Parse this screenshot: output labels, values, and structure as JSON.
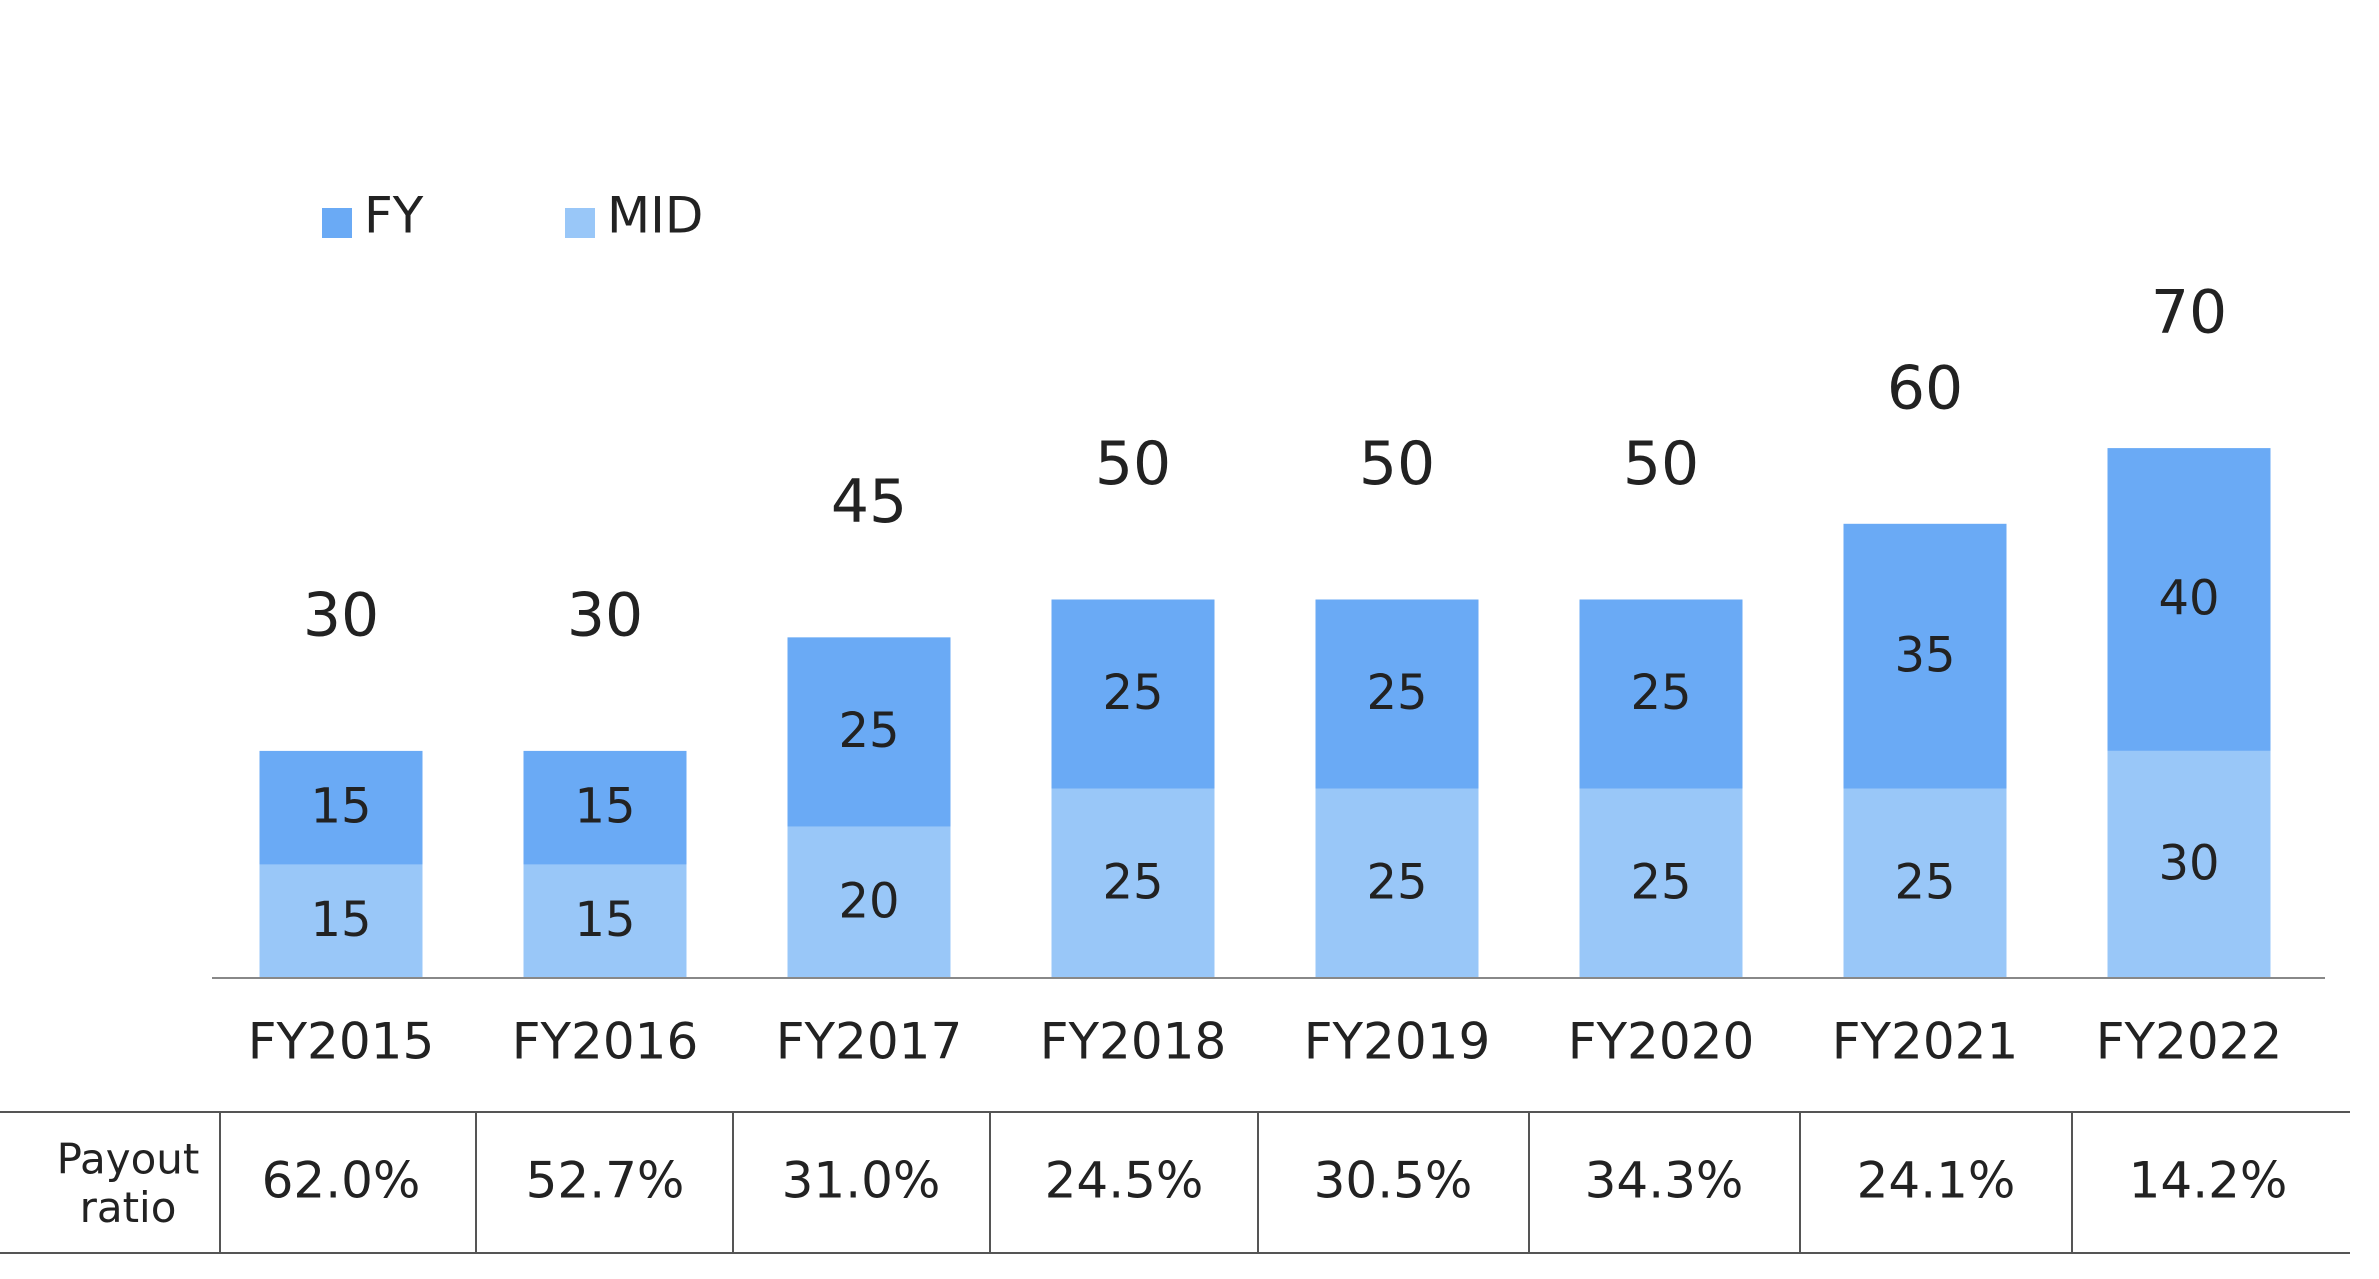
{
  "chart_data": {
    "type": "bar",
    "stacked": true,
    "categories": [
      "FY2015",
      "FY2016",
      "FY2017",
      "FY2018",
      "FY2019",
      "FY2020",
      "FY2021",
      "FY2022"
    ],
    "series": [
      {
        "name": "MID",
        "values": [
          15,
          15,
          20,
          25,
          25,
          25,
          25,
          30
        ],
        "color": "#99C7F8"
      },
      {
        "name": "FY",
        "values": [
          15,
          15,
          25,
          25,
          25,
          25,
          35,
          40
        ],
        "color": "#6AAAF5"
      }
    ],
    "totals": [
      30,
      30,
      45,
      50,
      50,
      50,
      60,
      70
    ],
    "legend_order": [
      "FY",
      "MID"
    ],
    "legend_position": "top-left",
    "ylim": [
      0,
      70
    ],
    "grid": false,
    "table": {
      "row_label": "Payout ratio",
      "values": [
        "62.0%",
        "52.7%",
        "31.0%",
        "24.5%",
        "30.5%",
        "34.3%",
        "24.1%",
        "14.2%"
      ]
    },
    "colors": {
      "axis": "#888888",
      "text": "#222222",
      "table_lines": "#555555"
    }
  }
}
